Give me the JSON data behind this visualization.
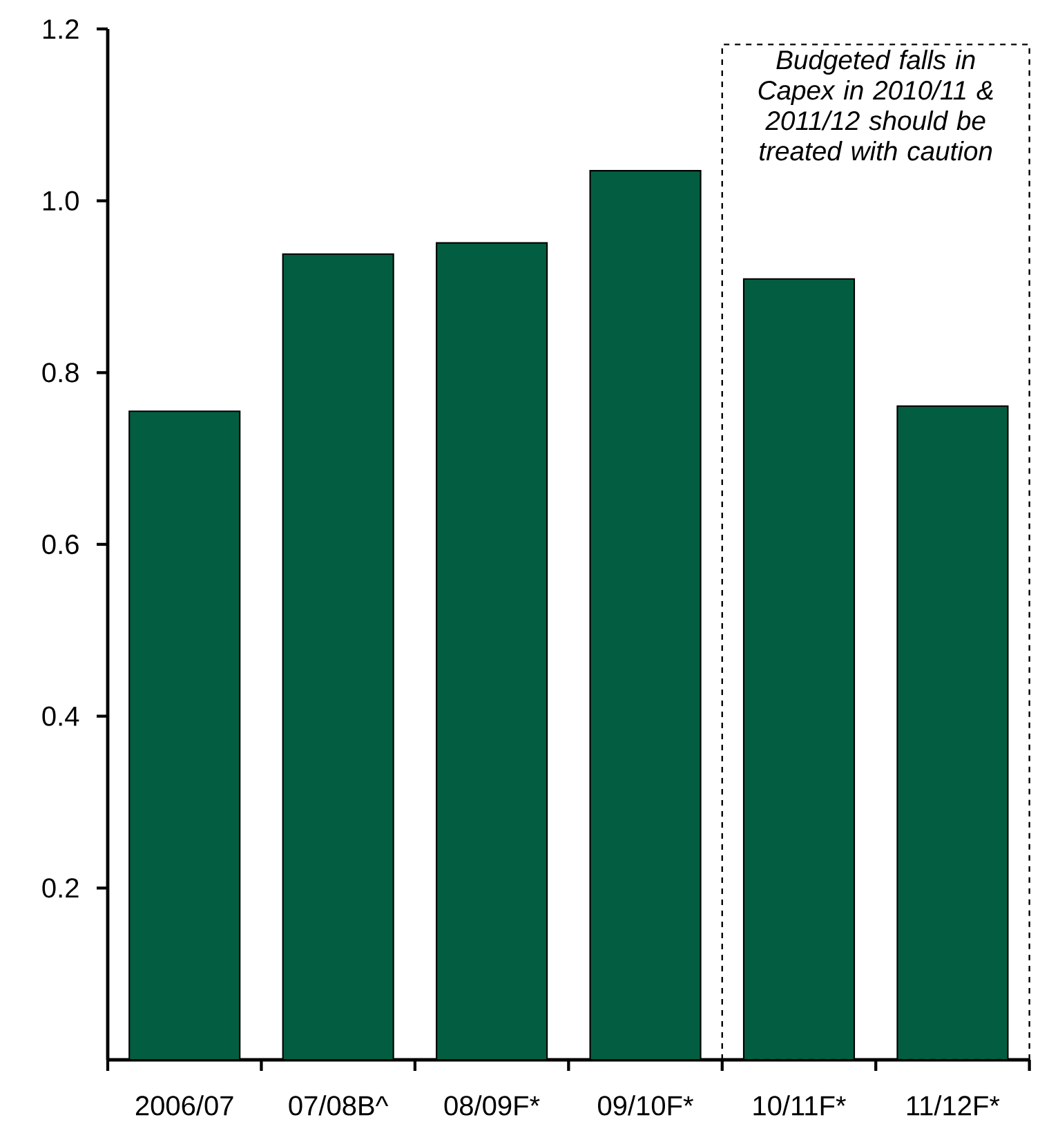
{
  "chart_data": {
    "type": "bar",
    "categories": [
      "2006/07",
      "07/08B^",
      "08/09F*",
      "09/10F*",
      "10/11F*",
      "11/12F*"
    ],
    "values": [
      0.755,
      0.938,
      0.951,
      1.035,
      0.909,
      0.761
    ],
    "color": "#035e41",
    "ylim": [
      0,
      1.2
    ],
    "yticks": [
      0.2,
      0.4,
      0.6,
      0.8,
      {
        "value": 1.0,
        "label": "1.0"
      },
      1.2
    ],
    "annotations": [
      "*Budgeted falls in Capex in 2010/11 & 2011/12 should be treated with caution*"
    ]
  }
}
